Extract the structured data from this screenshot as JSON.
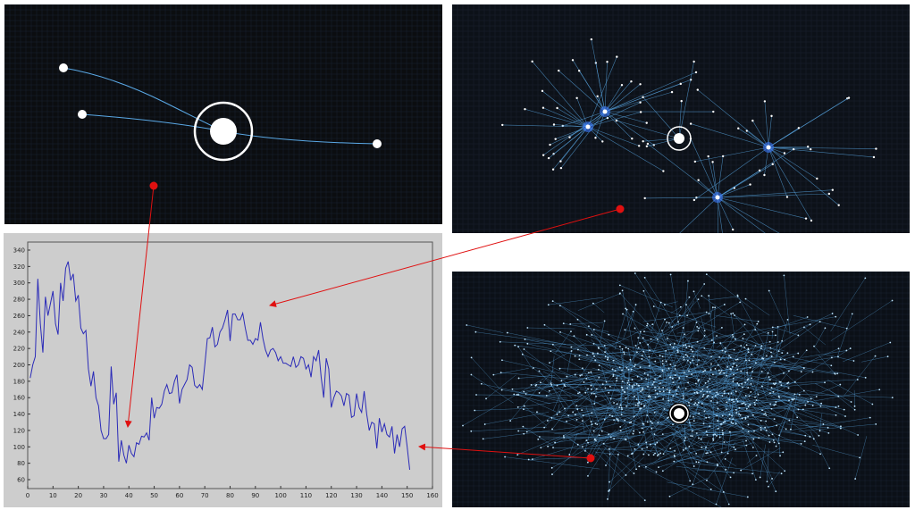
{
  "chart_data": {
    "type": "line",
    "title": "",
    "xlabel": "",
    "ylabel": "",
    "xlim": [
      0,
      160
    ],
    "ylim": [
      50,
      345
    ],
    "grid": false,
    "x_ticks": [
      0,
      10,
      20,
      30,
      40,
      50,
      60,
      70,
      80,
      90,
      100,
      110,
      120,
      130,
      140,
      150,
      160
    ],
    "y_ticks": [
      60,
      80,
      100,
      120,
      140,
      160,
      180,
      200,
      220,
      240,
      260,
      280,
      300,
      320,
      340
    ],
    "line_color": "#2b2bb8",
    "background": "#cdcdcd",
    "series": [
      {
        "x": [
          1,
          2,
          3,
          4,
          5,
          6,
          7,
          8,
          9,
          10,
          11,
          12,
          13,
          14,
          15,
          16,
          17,
          18,
          19,
          20,
          21,
          22,
          23,
          24,
          25,
          26,
          27,
          28,
          29,
          30,
          31,
          32,
          33,
          34,
          35,
          36,
          37,
          38,
          39,
          40,
          41,
          42,
          43,
          44,
          45,
          46,
          47,
          48,
          49,
          50,
          51,
          52,
          53,
          54,
          55,
          56,
          57,
          58,
          59,
          60,
          61,
          62,
          63,
          64,
          65,
          66,
          67,
          68,
          69,
          70,
          71,
          72,
          73,
          74,
          75,
          76,
          77,
          78,
          79,
          80,
          81,
          82,
          83,
          84,
          85,
          86,
          87,
          88,
          89,
          90,
          91,
          92,
          93,
          94,
          95,
          96,
          97,
          98,
          99,
          100,
          101,
          102,
          103,
          104,
          105,
          106,
          107,
          108,
          109,
          110,
          111,
          112,
          113,
          114,
          115,
          116,
          117,
          118,
          119,
          120,
          121,
          122,
          123,
          124,
          125,
          126,
          127,
          128,
          129,
          130,
          131,
          132,
          133,
          134,
          135,
          136,
          137,
          138,
          139,
          140,
          141,
          142,
          143,
          144,
          145,
          146,
          147,
          148,
          149,
          150,
          151
        ],
        "y": [
          184,
          200,
          210,
          305,
          250,
          215,
          283,
          260,
          275,
          290,
          250,
          237,
          300,
          278,
          318,
          326,
          303,
          311,
          278,
          285,
          245,
          238,
          242,
          195,
          174,
          192,
          160,
          150,
          120,
          110,
          110,
          115,
          198,
          152,
          166,
          82,
          108,
          90,
          80,
          102,
          92,
          88,
          105,
          103,
          113,
          112,
          117,
          108,
          160,
          135,
          148,
          147,
          152,
          168,
          176,
          165,
          166,
          180,
          188,
          153,
          170,
          176,
          182,
          200,
          197,
          175,
          172,
          176,
          170,
          200,
          232,
          233,
          246,
          222,
          225,
          240,
          245,
          255,
          267,
          229,
          262,
          262,
          255,
          255,
          263,
          245,
          230,
          230,
          225,
          232,
          230,
          252,
          232,
          218,
          210,
          218,
          220,
          215,
          205,
          210,
          202,
          202,
          200,
          198,
          210,
          197,
          200,
          210,
          208,
          195,
          200,
          185,
          210,
          205,
          218,
          185,
          160,
          208,
          195,
          148,
          160,
          168,
          166,
          162,
          150,
          165,
          163,
          136,
          138,
          165,
          148,
          142,
          168,
          140,
          120,
          130,
          128,
          98,
          135,
          118,
          128,
          115,
          112,
          125,
          92,
          115,
          100,
          122,
          125,
          100,
          72
        ]
      }
    ]
  },
  "annotations": {
    "arrow_color": "#e01010"
  },
  "network_colors": {
    "edge": "#5aa9e6",
    "node": "#ffffff",
    "hub_glow": "#3d7bff"
  }
}
